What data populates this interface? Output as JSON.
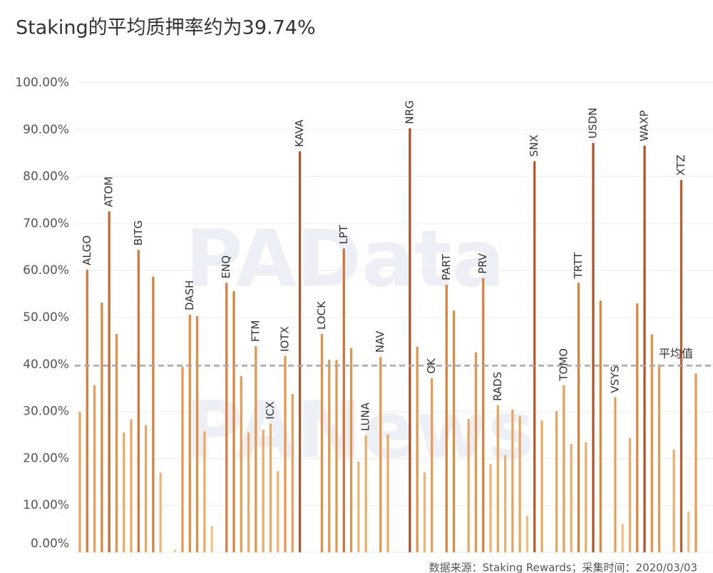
{
  "chart_data": {
    "type": "bar",
    "title": "Staking的平均质押率约为39.74%",
    "source": "数据来源：Staking Rewards；采集时间：2020/03/03",
    "watermarks": [
      "PAData",
      "PANews"
    ],
    "average": {
      "value": 39.74,
      "label": "平均值",
      "color": "#aaaaaa"
    },
    "categories": [
      null,
      "ALGO",
      null,
      null,
      "ATOM",
      null,
      null,
      null,
      "BITG",
      null,
      null,
      null,
      null,
      null,
      null,
      "DASH",
      null,
      null,
      null,
      null,
      "ENQ",
      null,
      null,
      null,
      "FTM",
      null,
      "ICX",
      null,
      "IOTX",
      null,
      "KAVA",
      null,
      null,
      "LOCK",
      null,
      null,
      "LPT",
      null,
      null,
      "LUNA",
      null,
      "NAV",
      null,
      null,
      null,
      "NRG",
      null,
      null,
      "OK",
      null,
      "PART",
      null,
      null,
      null,
      null,
      "PRV",
      null,
      "RADS",
      null,
      null,
      null,
      null,
      "SNX",
      null,
      null,
      null,
      "TOMO",
      null,
      "TRTT",
      null,
      "USDN",
      null,
      null,
      "VSYS",
      null,
      null,
      null,
      "WAXP",
      null,
      null,
      null,
      null,
      "XTZ",
      null,
      null
    ],
    "values": [
      29.9,
      60.2,
      35.6,
      53.2,
      72.6,
      46.5,
      25.5,
      28.3,
      64.4,
      27.1,
      58.7,
      17.0,
      null,
      0.6,
      39.5,
      50.6,
      50.3,
      25.8,
      5.6,
      null,
      57.4,
      55.6,
      37.5,
      25.5,
      43.9,
      26.1,
      27.4,
      17.3,
      41.8,
      33.7,
      85.4,
      null,
      null,
      46.5,
      41.0,
      41.0,
      64.7,
      43.5,
      19.3,
      24.9,
      null,
      41.6,
      25.1,
      null,
      null,
      90.3,
      43.8,
      17.0,
      37.1,
      null,
      57.0,
      51.5,
      null,
      28.4,
      42.6,
      58.4,
      18.8,
      31.3,
      20.7,
      30.4,
      29.0,
      7.8,
      83.3,
      28.1,
      null,
      30.1,
      35.6,
      23.1,
      57.4,
      23.4,
      87.2,
      53.6,
      null,
      33.0,
      6.1,
      24.3,
      53.0,
      86.6,
      46.4,
      40.0,
      null,
      21.9,
      79.3,
      8.7,
      38.1
    ],
    "colors": [
      "#f5c987",
      "#e58a3e",
      "#a23a1c"
    ],
    "ylim": [
      0,
      100
    ],
    "yticks": [
      {
        "value": 0,
        "label": "0.00%"
      },
      {
        "value": 10,
        "label": "10.00%"
      },
      {
        "value": 20,
        "label": "20.00%"
      },
      {
        "value": 30,
        "label": "30.00%"
      },
      {
        "value": 40,
        "label": "40.00%"
      },
      {
        "value": 50,
        "label": "50.00%"
      },
      {
        "value": 60,
        "label": "60.00%"
      },
      {
        "value": 70,
        "label": "70.00%"
      },
      {
        "value": 80,
        "label": "80.00%"
      },
      {
        "value": 90,
        "label": "90.00%"
      },
      {
        "value": 100,
        "label": "100.00%"
      }
    ],
    "grid": true
  }
}
